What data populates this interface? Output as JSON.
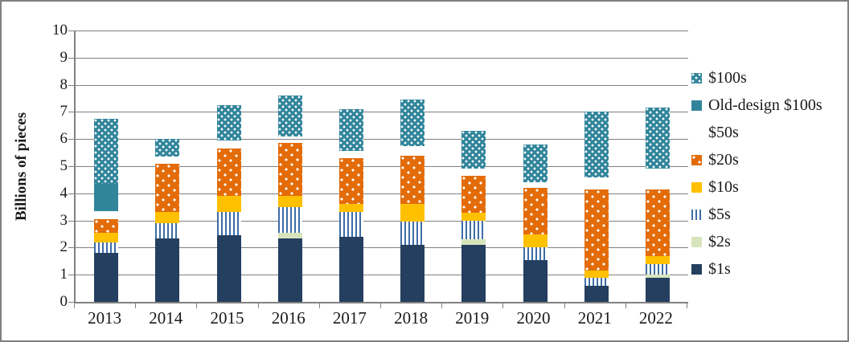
{
  "chart_data": {
    "type": "bar",
    "stacked": true,
    "title": "",
    "ylabel": "Billions of pieces",
    "xlabel": "",
    "ylim": [
      0,
      10
    ],
    "ytick_step": 1,
    "ytick_labels": [
      "0",
      "1",
      "2",
      "3",
      "4",
      "5",
      "6",
      "7",
      "8",
      "9",
      "10"
    ],
    "grid": "horizontal",
    "legend_position": "right",
    "legend_top_to_bottom": [
      "$100s",
      "Old-design $100s",
      "$50s",
      "$20s",
      "$10s",
      "$5s",
      "$2s",
      "$1s"
    ],
    "categories": [
      "2013",
      "2014",
      "2015",
      "2016",
      "2017",
      "2018",
      "2019",
      "2020",
      "2021",
      "2022"
    ],
    "series": [
      {
        "name": "$1s",
        "key": "s1",
        "color": "#243F60",
        "pattern": "solid-navy",
        "values": [
          1.8,
          2.35,
          2.45,
          2.35,
          2.4,
          2.1,
          2.1,
          1.55,
          0.6,
          0.9
        ]
      },
      {
        "name": "$2s",
        "key": "s2",
        "color": "#D8E4BC",
        "pattern": "solid-light-green",
        "values": [
          0,
          0,
          0,
          0.2,
          0,
          0,
          0.2,
          0,
          0,
          0.1
        ]
      },
      {
        "name": "$5s",
        "key": "s5",
        "color": "#3D6DA5",
        "pattern": "blue-vertical-stripes-on-white",
        "values": [
          0.4,
          0.55,
          0.85,
          0.95,
          0.9,
          0.85,
          0.7,
          0.45,
          0.3,
          0.4
        ]
      },
      {
        "name": "$10s",
        "key": "s10",
        "color": "#FFC000",
        "pattern": "solid-gold",
        "values": [
          0.35,
          0.4,
          0.6,
          0.4,
          0.3,
          0.65,
          0.3,
          0.5,
          0.25,
          0.3
        ]
      },
      {
        "name": "$20s",
        "key": "s20",
        "color": "#E36C09",
        "pattern": "orange-sparse-white-dots",
        "values": [
          0.5,
          1.8,
          1.75,
          1.95,
          1.7,
          1.8,
          1.35,
          1.7,
          3.0,
          2.45
        ]
      },
      {
        "name": "$50s",
        "key": "s50",
        "color": "#CC0099",
        "pattern": "solid-magenta",
        "values": [
          0.3,
          0.25,
          0.3,
          0.25,
          0.25,
          0.35,
          0.25,
          0.2,
          0.45,
          0.75
        ]
      },
      {
        "name": "Old-design $100s",
        "key": "old100",
        "color": "#31859B",
        "pattern": "solid-teal",
        "values": [
          1.0,
          0,
          0,
          0,
          0,
          0,
          0,
          0,
          0,
          0
        ]
      },
      {
        "name": "$100s",
        "key": "s100",
        "color": "#31859B",
        "pattern": "teal-white-dot-checker",
        "values": [
          2.4,
          0.65,
          1.3,
          1.5,
          1.55,
          1.7,
          1.4,
          1.4,
          2.4,
          2.25
        ]
      }
    ],
    "totals_by_year": [
      6.75,
      6.0,
      7.25,
      7.6,
      7.1,
      7.45,
      6.3,
      5.8,
      7.0,
      7.15
    ]
  },
  "colors": {
    "gridline": "#808080",
    "axis": "#808080",
    "frame_border": "#808080",
    "background": "#FFFFFF",
    "text": "#1A1A1A"
  }
}
